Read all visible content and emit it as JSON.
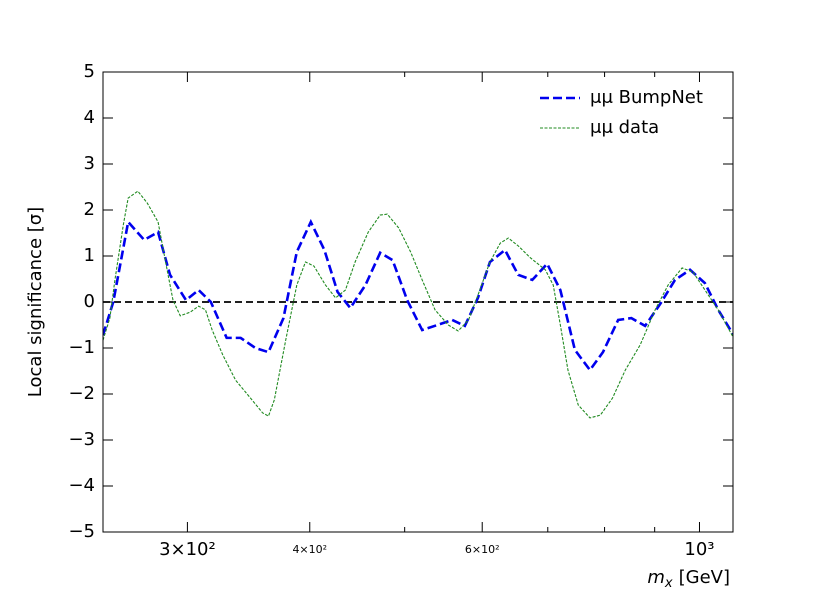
{
  "chart_data": {
    "type": "line",
    "xlabel": {
      "symbol": "m",
      "subscript": "x",
      "unit": "[GeV]"
    },
    "ylabel": "Local significance [σ]",
    "xscale": "log",
    "xlim": [
      246,
      1082
    ],
    "ylim": [
      -5,
      5
    ],
    "xticks": [
      {
        "value": 300,
        "label": "3×10²"
      },
      {
        "value": 400,
        "label": "4×10²"
      },
      {
        "value": 600,
        "label": "6×10²"
      },
      {
        "value": 1000,
        "label": "10³"
      }
    ],
    "xminorticks": [
      500,
      700,
      800,
      900
    ],
    "yticks": [
      {
        "value": -5,
        "label": "−5"
      },
      {
        "value": -4,
        "label": "−4"
      },
      {
        "value": -3,
        "label": "−3"
      },
      {
        "value": -2,
        "label": "−2"
      },
      {
        "value": -1,
        "label": "−1"
      },
      0,
      1,
      2,
      3,
      4,
      5
    ],
    "hline": 0,
    "legend": "upper right",
    "series": [
      {
        "name": "μμ BumpNet",
        "color": "#0000ee",
        "style": "dashed-thick",
        "x": [
          246,
          252,
          261,
          271,
          280,
          288,
          299,
          308,
          317,
          329,
          340,
          352,
          363,
          376,
          388,
          401,
          414,
          427,
          440,
          456,
          472,
          486,
          503,
          521,
          540,
          559,
          576,
          594,
          611,
          633,
          653,
          675,
          699,
          721,
          746,
          773,
          797,
          826,
          852,
          880,
          912,
          944,
          978,
          1013,
          1045,
          1082
        ],
        "values": [
          -0.72,
          0,
          1.74,
          1.35,
          1.52,
          0.59,
          0.04,
          0.26,
          0,
          -0.78,
          -0.78,
          -1.0,
          -1.09,
          -0.35,
          1.09,
          1.74,
          1.13,
          0.22,
          -0.13,
          0.37,
          1.07,
          0.91,
          0.04,
          -0.61,
          -0.5,
          -0.39,
          -0.52,
          0.09,
          0.87,
          1.13,
          0.59,
          0.48,
          0.83,
          0.26,
          -1.04,
          -1.48,
          -1.09,
          -0.39,
          -0.35,
          -0.52,
          -0.04,
          0.48,
          0.7,
          0.41,
          -0.17,
          -0.7
        ]
      },
      {
        "name": "μμ data",
        "color": "#228b22",
        "style": "dashed-thin",
        "x": [
          246,
          250,
          253,
          258,
          261,
          267,
          273,
          280,
          285,
          290,
          295,
          302,
          308,
          313,
          318,
          326,
          336,
          348,
          358,
          363,
          368,
          378,
          388,
          396,
          404,
          415,
          425,
          435,
          445,
          459,
          472,
          480,
          493,
          507,
          521,
          537,
          554,
          567,
          581,
          594,
          611,
          626,
          638,
          653,
          672,
          696,
          709,
          721,
          734,
          752,
          773,
          792,
          815,
          840,
          870,
          901,
          929,
          960,
          985,
          1013,
          1045,
          1082
        ],
        "values": [
          -0.83,
          -0.35,
          0.48,
          1.67,
          2.26,
          2.41,
          2.15,
          1.74,
          0.87,
          0.04,
          -0.3,
          -0.22,
          -0.09,
          -0.17,
          -0.61,
          -1.15,
          -1.7,
          -2.09,
          -2.41,
          -2.48,
          -2.13,
          -0.83,
          0.37,
          0.87,
          0.78,
          0.37,
          0.09,
          0.26,
          0.87,
          1.52,
          1.89,
          1.91,
          1.61,
          1.09,
          0.48,
          -0.17,
          -0.5,
          -0.63,
          -0.39,
          0.15,
          0.87,
          1.28,
          1.39,
          1.22,
          0.96,
          0.7,
          0.37,
          -0.5,
          -1.48,
          -2.24,
          -2.52,
          -2.46,
          -2.09,
          -1.48,
          -0.93,
          -0.17,
          0.37,
          0.74,
          0.65,
          0.26,
          -0.17,
          -0.76
        ]
      }
    ]
  }
}
